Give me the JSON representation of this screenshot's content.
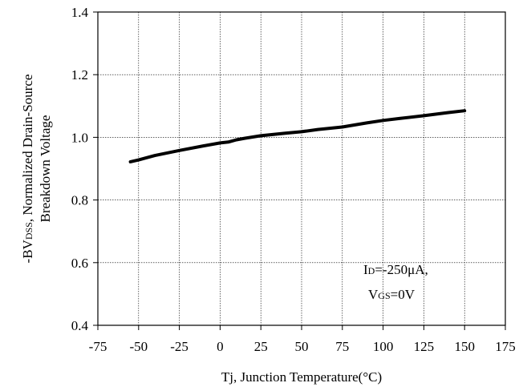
{
  "chart_data": {
    "type": "line",
    "xlabel": "Tj, Junction Temperature(°C)",
    "ylabel_parts": {
      "line1_prefix": "-BV",
      "line1_sub": "DSS",
      "line1_suffix": ", Normalized Drain-Source",
      "line2": "Breakdown Voltage"
    },
    "xlim": [
      -75,
      175
    ],
    "ylim": [
      0.4,
      1.4
    ],
    "x_ticks": [
      -75,
      -50,
      -25,
      0,
      25,
      50,
      75,
      100,
      125,
      150,
      175
    ],
    "x_tick_labels": [
      "-75",
      "-50",
      "-25",
      "0",
      "25",
      "50",
      "75",
      "100",
      "125",
      "150",
      "175"
    ],
    "y_ticks": [
      0.4,
      0.6,
      0.8,
      1.0,
      1.2,
      1.4
    ],
    "y_tick_labels": [
      "0.4",
      "0.6",
      "0.8",
      "1.0",
      "1.2",
      "1.4"
    ],
    "grid": true,
    "series": [
      {
        "x": [
          -55,
          -50,
          -40,
          -25,
          -10,
          0,
          5,
          10,
          15,
          25,
          40,
          50,
          60,
          75,
          90,
          100,
          110,
          125,
          140,
          150
        ],
        "y": [
          0.922,
          0.928,
          0.942,
          0.958,
          0.973,
          0.982,
          0.985,
          0.992,
          0.997,
          1.005,
          1.013,
          1.018,
          1.025,
          1.033,
          1.046,
          1.054,
          1.06,
          1.069,
          1.079,
          1.085
        ],
        "color": "#000000"
      }
    ],
    "annotation": {
      "line1_main": "I",
      "line1_sub": "D",
      "line1_rest": "=-250μA,",
      "line2_main": "V",
      "line2_sub": "GS",
      "line2_rest": "=0V"
    }
  }
}
